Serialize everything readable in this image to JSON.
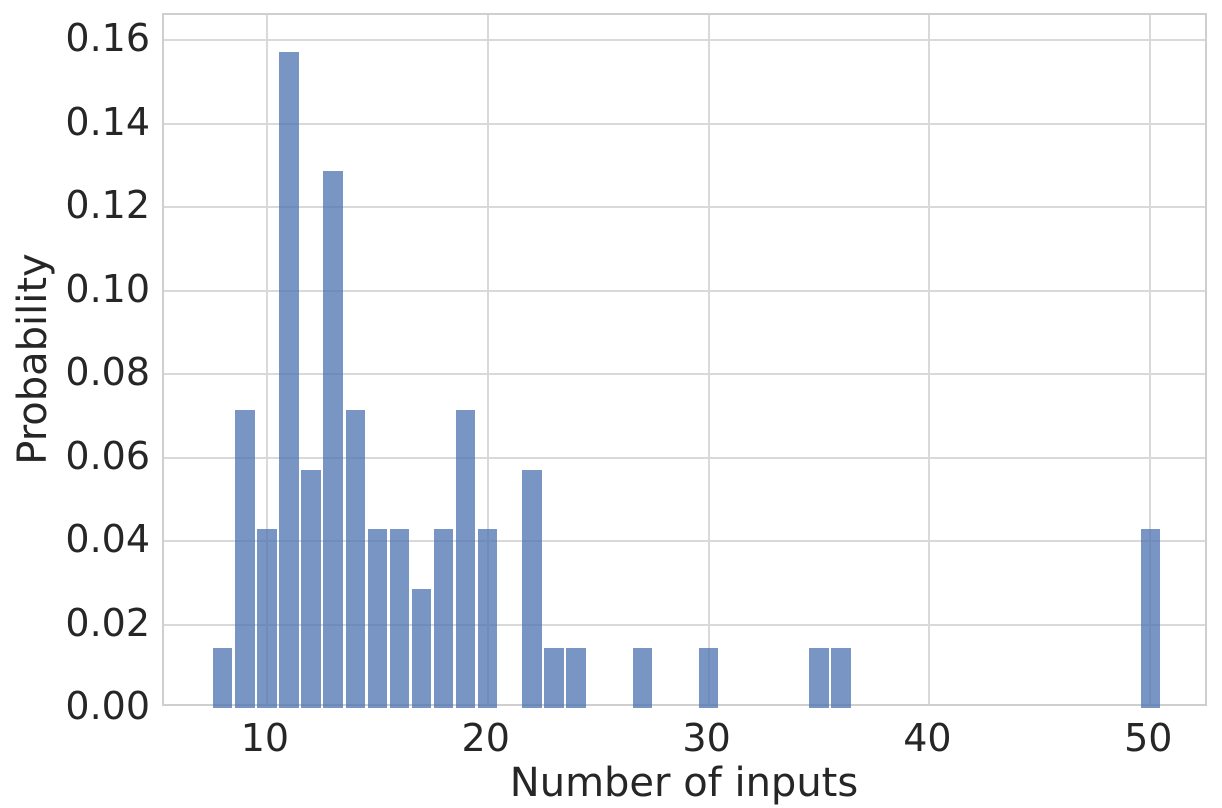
{
  "chart_data": {
    "type": "bar",
    "subtype": "histogram",
    "title": "",
    "xlabel": "Number of inputs",
    "ylabel": "Probability",
    "bin_width": 1,
    "bars": [
      {
        "x": 8,
        "p": 0.0143
      },
      {
        "x": 9,
        "p": 0.0714
      },
      {
        "x": 10,
        "p": 0.0429
      },
      {
        "x": 11,
        "p": 0.1571
      },
      {
        "x": 12,
        "p": 0.0571
      },
      {
        "x": 13,
        "p": 0.1286
      },
      {
        "x": 14,
        "p": 0.0714
      },
      {
        "x": 15,
        "p": 0.0429
      },
      {
        "x": 16,
        "p": 0.0429
      },
      {
        "x": 17,
        "p": 0.0286
      },
      {
        "x": 18,
        "p": 0.0429
      },
      {
        "x": 19,
        "p": 0.0714
      },
      {
        "x": 20,
        "p": 0.0429
      },
      {
        "x": 22,
        "p": 0.0571
      },
      {
        "x": 23,
        "p": 0.0143
      },
      {
        "x": 24,
        "p": 0.0143
      },
      {
        "x": 27,
        "p": 0.0143
      },
      {
        "x": 30,
        "p": 0.0143
      },
      {
        "x": 35,
        "p": 0.0143
      },
      {
        "x": 36,
        "p": 0.0143
      },
      {
        "x": 50,
        "p": 0.0429
      }
    ],
    "xlim": [
      5.34,
      52.66
    ],
    "ylim": [
      0,
      0.166
    ],
    "xticks": [
      {
        "v": 10,
        "label": "10"
      },
      {
        "v": 20,
        "label": "20"
      },
      {
        "v": 30,
        "label": "30"
      },
      {
        "v": 40,
        "label": "40"
      },
      {
        "v": 50,
        "label": "50"
      }
    ],
    "yticks": [
      {
        "v": 0.0,
        "label": "0.00"
      },
      {
        "v": 0.02,
        "label": "0.02"
      },
      {
        "v": 0.04,
        "label": "0.04"
      },
      {
        "v": 0.06,
        "label": "0.06"
      },
      {
        "v": 0.08,
        "label": "0.08"
      },
      {
        "v": 0.1,
        "label": "0.10"
      },
      {
        "v": 0.12,
        "label": "0.12"
      },
      {
        "v": 0.14,
        "label": "0.14"
      },
      {
        "v": 0.16,
        "label": "0.16"
      }
    ],
    "grid": true,
    "legend_position": "none",
    "colors": {
      "bar_fill": "#4C72B0",
      "bar_alpha": "0.75",
      "grid": "#D9D9D9",
      "spine": "#CFCFCF",
      "text": "#262626",
      "background": "#FFFFFF"
    }
  }
}
